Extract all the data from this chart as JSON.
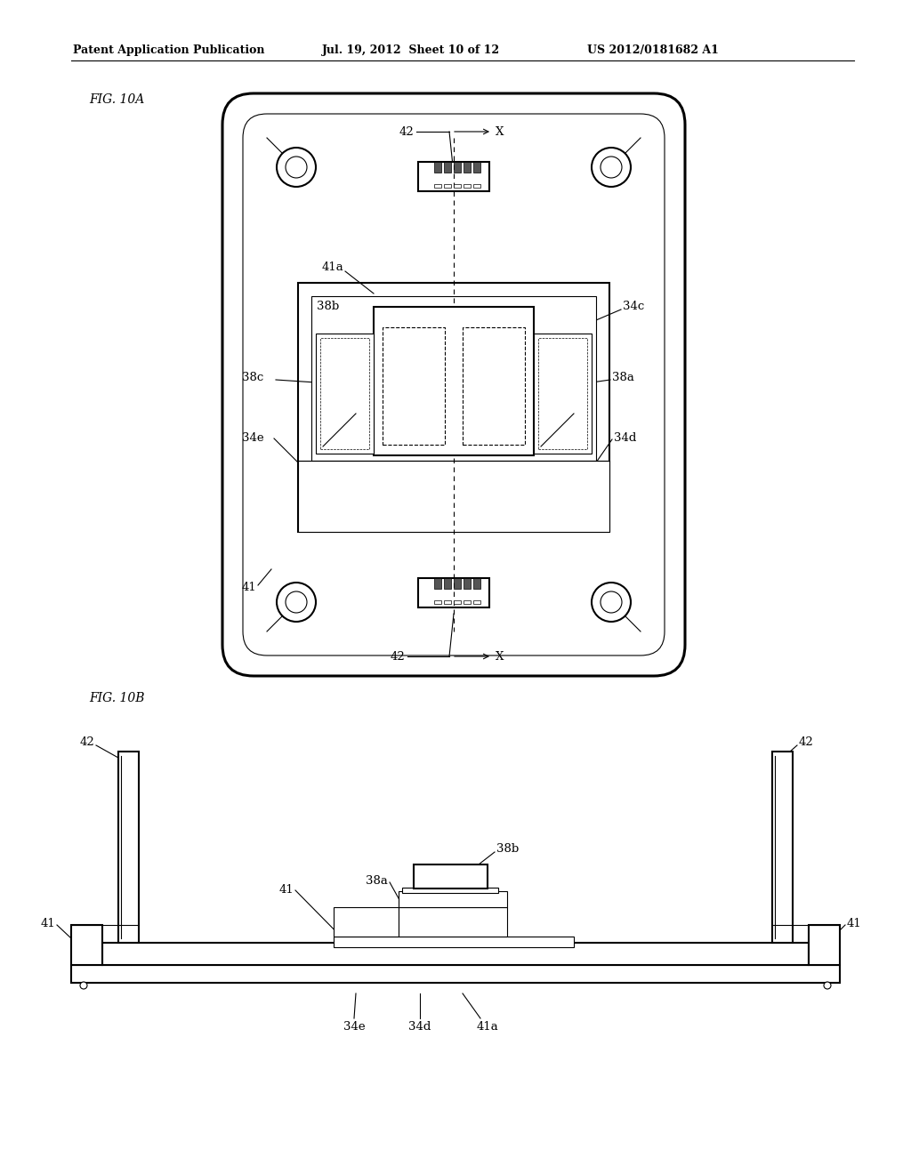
{
  "header_left": "Patent Application Publication",
  "header_mid": "Jul. 19, 2012  Sheet 10 of 12",
  "header_right": "US 2012/0181682 A1",
  "fig_label_10A": "FIG. 10A",
  "fig_label_10B": "FIG. 10B",
  "bg_color": "#ffffff",
  "line_color": "#000000"
}
